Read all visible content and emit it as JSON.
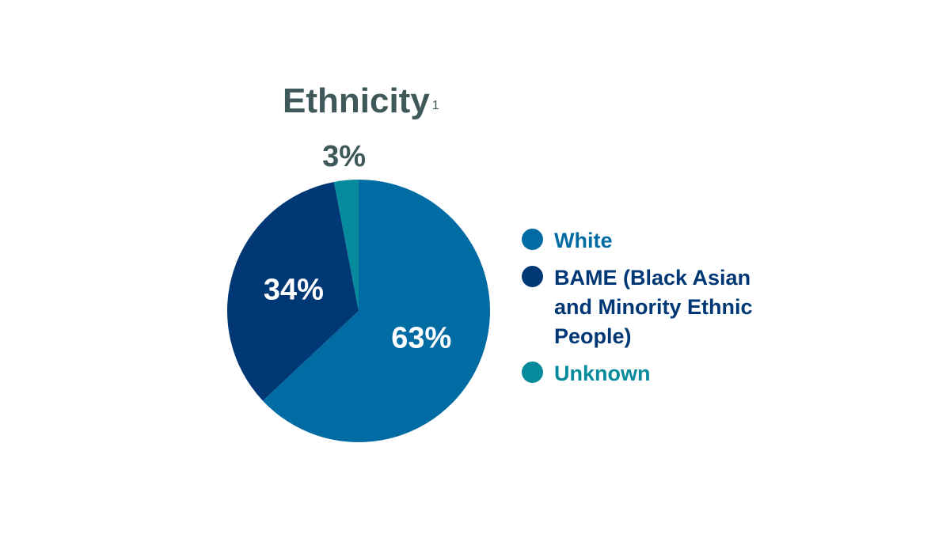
{
  "chart_data": {
    "type": "pie",
    "title": "Ethnicity",
    "title_footnote": "1",
    "categories": [
      "White",
      "BAME (Black Asian and Minority Ethnic People)",
      "Unknown"
    ],
    "values": [
      63,
      34,
      3
    ],
    "value_labels": [
      "63%",
      "34%",
      "3%"
    ],
    "colors": [
      "#016ba3",
      "#003876",
      "#068b9d"
    ],
    "label_colors": [
      "#ffffff",
      "#ffffff",
      "#3f5859"
    ],
    "legend_position": "right"
  }
}
